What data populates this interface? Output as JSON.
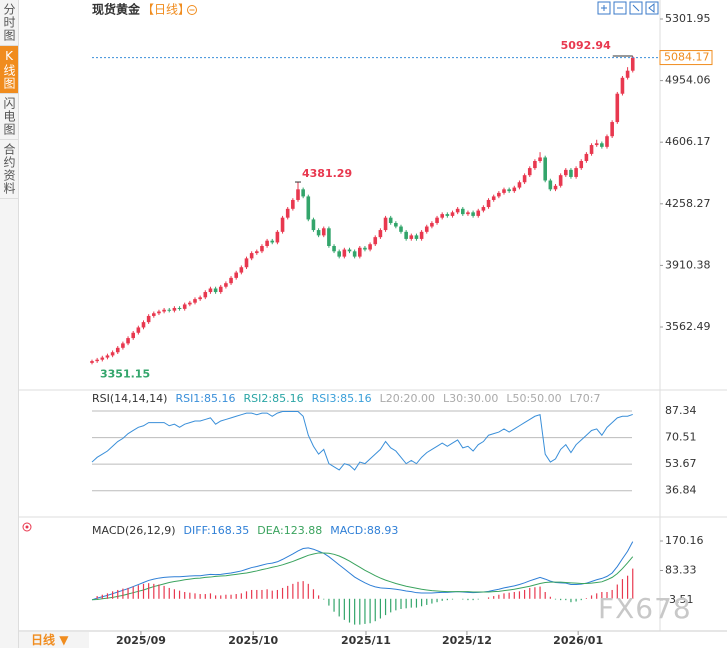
{
  "ui": {
    "tabs": [
      "分时图",
      "K线图",
      "闪电图",
      "合约资料"
    ],
    "period_tab": "日线",
    "watermark": "FX678"
  },
  "chart_data": [
    {
      "type": "candlestick",
      "title": "现货黄金",
      "subtitle": "【日线】",
      "up_color": "#e8384f",
      "down_color": "#33a56b",
      "last_price_color": "#f08c1e",
      "ylim": [
        3235,
        5301.95
      ],
      "yticks": [
        5301.95,
        4954.06,
        4606.17,
        4258.27,
        3910.38,
        3562.49
      ],
      "grid": false,
      "xticks": [
        {
          "value": 9.5,
          "label": "2025/09"
        },
        {
          "value": 31.3,
          "label": "2025/10"
        },
        {
          "value": 53.2,
          "label": "2025/11"
        },
        {
          "value": 72.8,
          "label": "2025/12"
        },
        {
          "value": 94.4,
          "label": "2026/01"
        }
      ],
      "open": [
        3360,
        3370,
        3378,
        3390,
        3402,
        3420,
        3445,
        3470,
        3500,
        3530,
        3560,
        3590,
        3625,
        3640,
        3650,
        3660,
        3655,
        3670,
        3665,
        3690,
        3700,
        3720,
        3730,
        3760,
        3780,
        3760,
        3790,
        3810,
        3840,
        3870,
        3900,
        3950,
        3980,
        3990,
        4020,
        4050,
        4040,
        4100,
        4180,
        4230,
        4280,
        4340,
        4300,
        4170,
        4110,
        4080,
        4120,
        4020,
        3990,
        3960,
        4000,
        3990,
        3960,
        4010,
        4000,
        4030,
        4070,
        4110,
        4180,
        4150,
        4130,
        4100,
        4060,
        4080,
        4060,
        4100,
        4130,
        4150,
        4180,
        4200,
        4190,
        4210,
        4230,
        4200,
        4210,
        4190,
        4220,
        4240,
        4280,
        4300,
        4320,
        4340,
        4330,
        4350,
        4380,
        4420,
        4460,
        4500,
        4520,
        4390,
        4340,
        4360,
        4420,
        4450,
        4410,
        4460,
        4500,
        4540,
        4590,
        4600,
        4580,
        4640,
        4720,
        4880,
        4970,
        5010
      ],
      "high": [
        3378,
        3388,
        3400,
        3412,
        3430,
        3455,
        3480,
        3510,
        3540,
        3570,
        3600,
        3635,
        3650,
        3660,
        3670,
        3670,
        3680,
        3680,
        3700,
        3710,
        3730,
        3740,
        3770,
        3790,
        3790,
        3800,
        3820,
        3850,
        3880,
        3910,
        3960,
        3990,
        4000,
        4030,
        4060,
        4060,
        4110,
        4190,
        4240,
        4290,
        4381.29,
        4350,
        4310,
        4180,
        4120,
        4130,
        4130,
        4030,
        4000,
        4010,
        4010,
        4000,
        4020,
        4020,
        4040,
        4080,
        4120,
        4190,
        4190,
        4160,
        4140,
        4110,
        4090,
        4090,
        4110,
        4140,
        4160,
        4190,
        4210,
        4210,
        4220,
        4240,
        4240,
        4220,
        4220,
        4230,
        4250,
        4290,
        4310,
        4330,
        4350,
        4350,
        4360,
        4390,
        4430,
        4470,
        4510,
        4550,
        4530,
        4400,
        4370,
        4430,
        4460,
        4460,
        4470,
        4510,
        4550,
        4600,
        4620,
        4610,
        4650,
        4730,
        4890,
        4980,
        5030,
        5092.94
      ],
      "low": [
        3351.15,
        3360,
        3368,
        3380,
        3392,
        3410,
        3435,
        3460,
        3490,
        3520,
        3550,
        3580,
        3615,
        3630,
        3640,
        3645,
        3645,
        3655,
        3655,
        3680,
        3690,
        3710,
        3720,
        3750,
        3750,
        3750,
        3780,
        3800,
        3830,
        3860,
        3890,
        3940,
        3970,
        3980,
        4010,
        4030,
        4030,
        4090,
        4170,
        4220,
        4270,
        4290,
        4160,
        4100,
        4070,
        4070,
        4010,
        3980,
        3950,
        3950,
        3980,
        3950,
        3950,
        3990,
        3990,
        4020,
        4060,
        4100,
        4140,
        4120,
        4090,
        4050,
        4050,
        4050,
        4050,
        4090,
        4120,
        4140,
        4170,
        4180,
        4180,
        4200,
        4190,
        4190,
        4180,
        4180,
        4210,
        4230,
        4270,
        4290,
        4310,
        4320,
        4320,
        4340,
        4370,
        4410,
        4450,
        4490,
        4380,
        4330,
        4330,
        4350,
        4410,
        4400,
        4400,
        4450,
        4490,
        4530,
        4580,
        4570,
        4570,
        4630,
        4710,
        4870,
        4960,
        5000
      ],
      "close": [
        3370,
        3378,
        3390,
        3402,
        3420,
        3445,
        3470,
        3500,
        3530,
        3560,
        3590,
        3625,
        3640,
        3650,
        3660,
        3655,
        3670,
        3665,
        3690,
        3700,
        3720,
        3730,
        3760,
        3780,
        3760,
        3790,
        3810,
        3840,
        3870,
        3900,
        3950,
        3980,
        3990,
        4020,
        4050,
        4040,
        4100,
        4180,
        4230,
        4280,
        4340,
        4300,
        4170,
        4110,
        4080,
        4120,
        4020,
        3990,
        3960,
        4000,
        3990,
        3960,
        4010,
        4000,
        4030,
        4070,
        4110,
        4180,
        4150,
        4130,
        4100,
        4060,
        4080,
        4060,
        4100,
        4130,
        4150,
        4180,
        4200,
        4190,
        4210,
        4230,
        4200,
        4210,
        4190,
        4220,
        4240,
        4280,
        4300,
        4320,
        4340,
        4330,
        4350,
        4380,
        4420,
        4460,
        4500,
        4520,
        4390,
        4340,
        4360,
        4420,
        4450,
        4410,
        4460,
        4500,
        4540,
        4590,
        4600,
        4580,
        4640,
        4720,
        4880,
        4970,
        5010,
        5084.17
      ]
    },
    {
      "type": "line",
      "ylim": [
        24,
        87.34
      ],
      "yticks": [
        87.34,
        70.51,
        53.67,
        36.84
      ],
      "grid": true,
      "legend": [
        {
          "text": "RSI(14,14,14)",
          "color": "#333333"
        },
        {
          "text": "RSI1:85.16",
          "color": "#3a8fd9"
        },
        {
          "text": "RSI2:85.16",
          "color": "#2aa5a5"
        },
        {
          "text": "RSI3:85.16",
          "color": "#3a9fd9"
        },
        {
          "text": "L20:20.00",
          "color": "#aaaaaa"
        },
        {
          "text": "L30:30.00",
          "color": "#aaaaaa"
        },
        {
          "text": "L50:50.00",
          "color": "#aaaaaa"
        },
        {
          "text": "L70:7",
          "color": "#aaaaaa"
        }
      ],
      "series": [
        {
          "color": "#3a8fd9",
          "values": [
            55,
            58,
            60,
            62,
            65,
            68,
            70,
            73,
            75,
            77,
            78,
            80,
            80,
            80,
            80,
            78,
            79,
            77,
            79,
            80,
            81,
            81,
            82,
            83,
            79,
            81,
            82,
            83,
            84,
            85,
            86,
            86,
            85,
            86,
            86,
            84,
            86,
            87,
            87,
            87,
            87,
            84,
            72,
            65,
            60,
            63,
            54,
            52,
            50,
            54,
            53,
            50,
            55,
            54,
            57,
            60,
            63,
            68,
            64,
            62,
            58,
            54,
            56,
            54,
            58,
            61,
            63,
            65,
            67,
            65,
            67,
            69,
            64,
            65,
            62,
            66,
            68,
            72,
            73,
            74,
            76,
            74,
            76,
            78,
            80,
            82,
            84,
            85,
            60,
            55,
            57,
            63,
            66,
            61,
            66,
            69,
            72,
            75,
            76,
            72,
            77,
            80,
            83,
            84,
            84,
            85.16
          ]
        }
      ]
    },
    {
      "type": "macd",
      "ylim": [
        -86,
        170.16
      ],
      "yticks": [
        170.16,
        83.33,
        -3.51
      ],
      "grid": false,
      "up_color": "#e8384f",
      "down_color": "#33a56b",
      "legend": [
        {
          "text": "MACD(26,12,9)",
          "color": "#333333"
        },
        {
          "text": "DIFF:168.35",
          "color": "#2f7fd6"
        },
        {
          "text": "DEA:123.88",
          "color": "#3aa35e"
        },
        {
          "text": "MACD:88.93",
          "color": "#2f7fd6"
        }
      ],
      "series": [
        {
          "kind": "line",
          "color": "#2f7fd6",
          "values": [
            -3,
            2,
            6,
            10,
            15,
            20,
            25,
            30,
            36,
            42,
            48,
            54,
            58,
            61,
            63,
            64,
            65,
            65,
            66,
            67,
            68,
            68,
            70,
            72,
            71,
            72,
            74,
            76,
            79,
            82,
            87,
            92,
            95,
            99,
            103,
            105,
            109,
            116,
            124,
            132,
            141,
            148,
            150,
            146,
            140,
            134,
            124,
            112,
            100,
            88,
            76,
            64,
            55,
            47,
            40,
            35,
            32,
            31,
            30,
            28,
            26,
            23,
            21,
            18,
            17,
            17,
            17,
            18,
            19,
            19,
            20,
            21,
            20,
            19,
            18,
            19,
            20,
            22,
            25,
            28,
            32,
            35,
            38,
            42,
            47,
            53,
            58,
            63,
            58,
            52,
            48,
            47,
            46,
            42,
            42,
            43,
            46,
            51,
            56,
            60,
            66,
            76,
            95,
            118,
            140,
            168.35
          ]
        },
        {
          "kind": "line",
          "color": "#3aa35e",
          "values": [
            -3,
            -2,
            0,
            2,
            4,
            7,
            10,
            14,
            18,
            22,
            26,
            31,
            36,
            40,
            44,
            48,
            51,
            53,
            56,
            58,
            60,
            61,
            63,
            64,
            66,
            67,
            68,
            70,
            72,
            74,
            76,
            79,
            82,
            86,
            89,
            93,
            96,
            100,
            105,
            110,
            116,
            122,
            128,
            132,
            135,
            135,
            134,
            131,
            126,
            119,
            111,
            102,
            93,
            84,
            76,
            68,
            61,
            55,
            50,
            45,
            41,
            37,
            34,
            31,
            28,
            26,
            24,
            23,
            22,
            21,
            21,
            21,
            21,
            21,
            20,
            20,
            20,
            20,
            21,
            22,
            24,
            26,
            28,
            31,
            34,
            37,
            41,
            45,
            48,
            49,
            49,
            49,
            48,
            47,
            46,
            45,
            45,
            46,
            48,
            50,
            56,
            63,
            74,
            89,
            106,
            123.88
          ]
        },
        {
          "kind": "bar",
          "values": [
            0,
            8,
            12,
            16,
            22,
            26,
            30,
            32,
            36,
            40,
            44,
            46,
            44,
            42,
            38,
            32,
            28,
            24,
            20,
            18,
            16,
            14,
            14,
            16,
            10,
            10,
            12,
            12,
            14,
            16,
            22,
            26,
            26,
            26,
            28,
            24,
            26,
            32,
            38,
            44,
            50,
            52,
            44,
            28,
            10,
            -2,
            -20,
            -38,
            -52,
            -62,
            -70,
            -76,
            -76,
            -74,
            -72,
            -66,
            -58,
            -48,
            -40,
            -34,
            -30,
            -28,
            -26,
            -26,
            -22,
            -18,
            -14,
            -10,
            -6,
            -4,
            -2,
            0,
            -2,
            -4,
            -4,
            -2,
            0,
            4,
            8,
            12,
            16,
            18,
            20,
            22,
            26,
            32,
            34,
            36,
            20,
            6,
            -2,
            -4,
            -4,
            -10,
            -8,
            -4,
            2,
            10,
            16,
            20,
            20,
            26,
            42,
            58,
            68,
            88.93
          ]
        }
      ]
    }
  ]
}
